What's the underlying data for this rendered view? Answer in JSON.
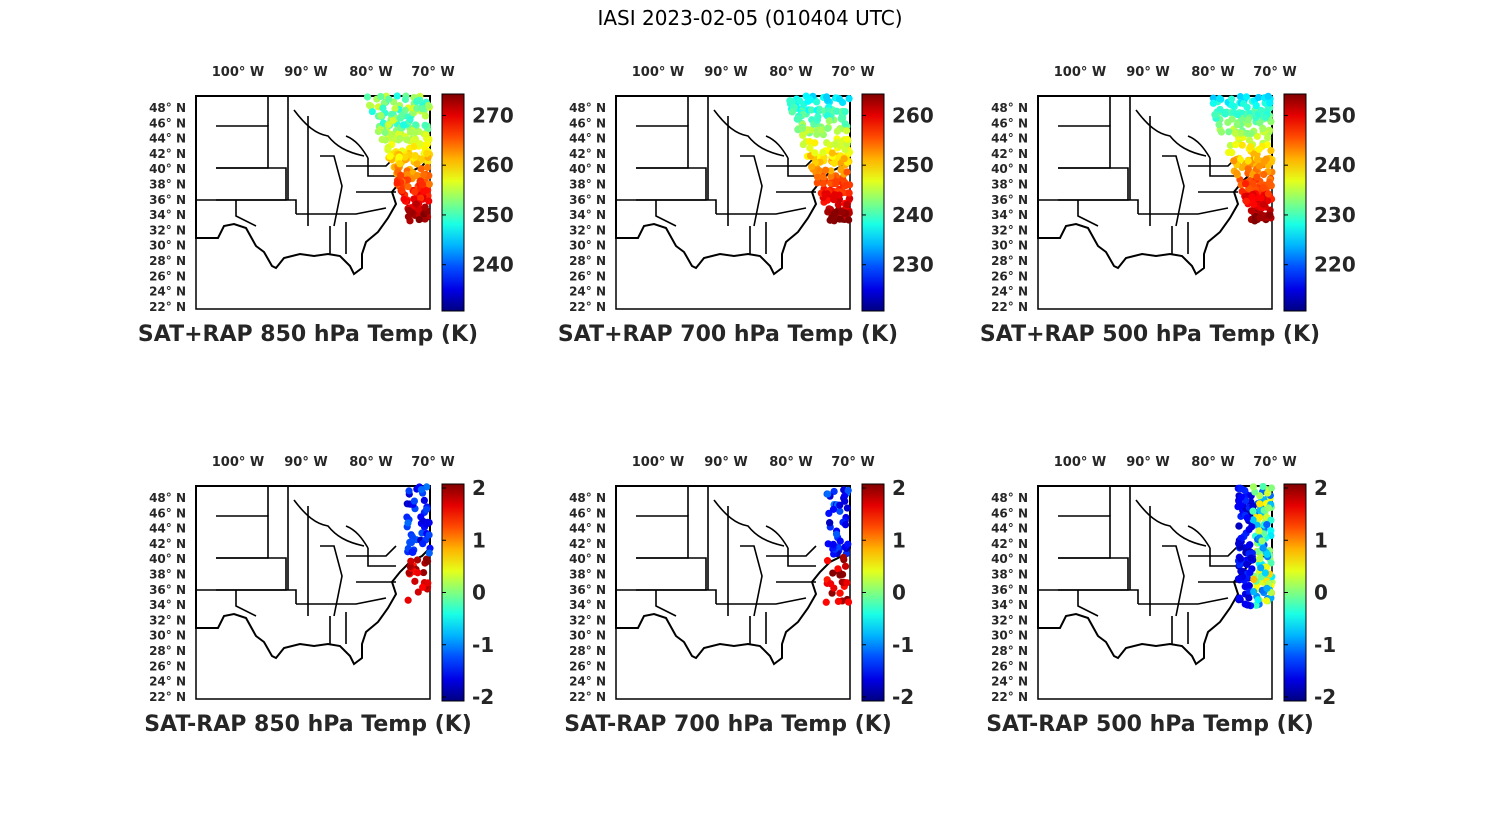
{
  "figure": {
    "title": "IASI 2023-02-05 (010404 UTC)",
    "lon_ticks": [
      "100° W",
      "90° W",
      "80° W",
      "70° W"
    ],
    "lat_ticks": [
      "48° N",
      "46° N",
      "44° N",
      "42° N",
      "40° N",
      "38° N",
      "36° N",
      "34° N",
      "32° N",
      "30° N",
      "28° N",
      "26° N",
      "24° N",
      "22° N"
    ],
    "colormap": "jet",
    "colors": {
      "text": "#262626",
      "frame": "#000000",
      "background": "#ffffff"
    }
  },
  "panels": [
    {
      "title": "SAT+RAP 850 hPa Temp (K)",
      "cbar_ticks": [
        "270",
        "260",
        "250",
        "240"
      ],
      "cbar_range": [
        230,
        273
      ]
    },
    {
      "title": "SAT+RAP 700 hPa Temp (K)",
      "cbar_ticks": [
        "260",
        "250",
        "240",
        "230"
      ],
      "cbar_range": [
        227,
        266
      ]
    },
    {
      "title": "SAT+RAP 500 hPa Temp (K)",
      "cbar_ticks": [
        "250",
        "240",
        "230",
        "220"
      ],
      "cbar_range": [
        213,
        258
      ]
    },
    {
      "title": "SAT-RAP 850 hPa Temp (K)",
      "cbar_ticks": [
        "2",
        "1",
        "0",
        "-1",
        "-2"
      ],
      "cbar_range": [
        -2,
        2
      ]
    },
    {
      "title": "SAT-RAP 700 hPa Temp (K)",
      "cbar_ticks": [
        "2",
        "1",
        "0",
        "-1",
        "-2"
      ],
      "cbar_range": [
        -2,
        2
      ]
    },
    {
      "title": "SAT-RAP 500 hPa Temp (K)",
      "cbar_ticks": [
        "2",
        "1",
        "0",
        "-1",
        "-2"
      ],
      "cbar_range": [
        -2,
        2
      ]
    }
  ]
}
